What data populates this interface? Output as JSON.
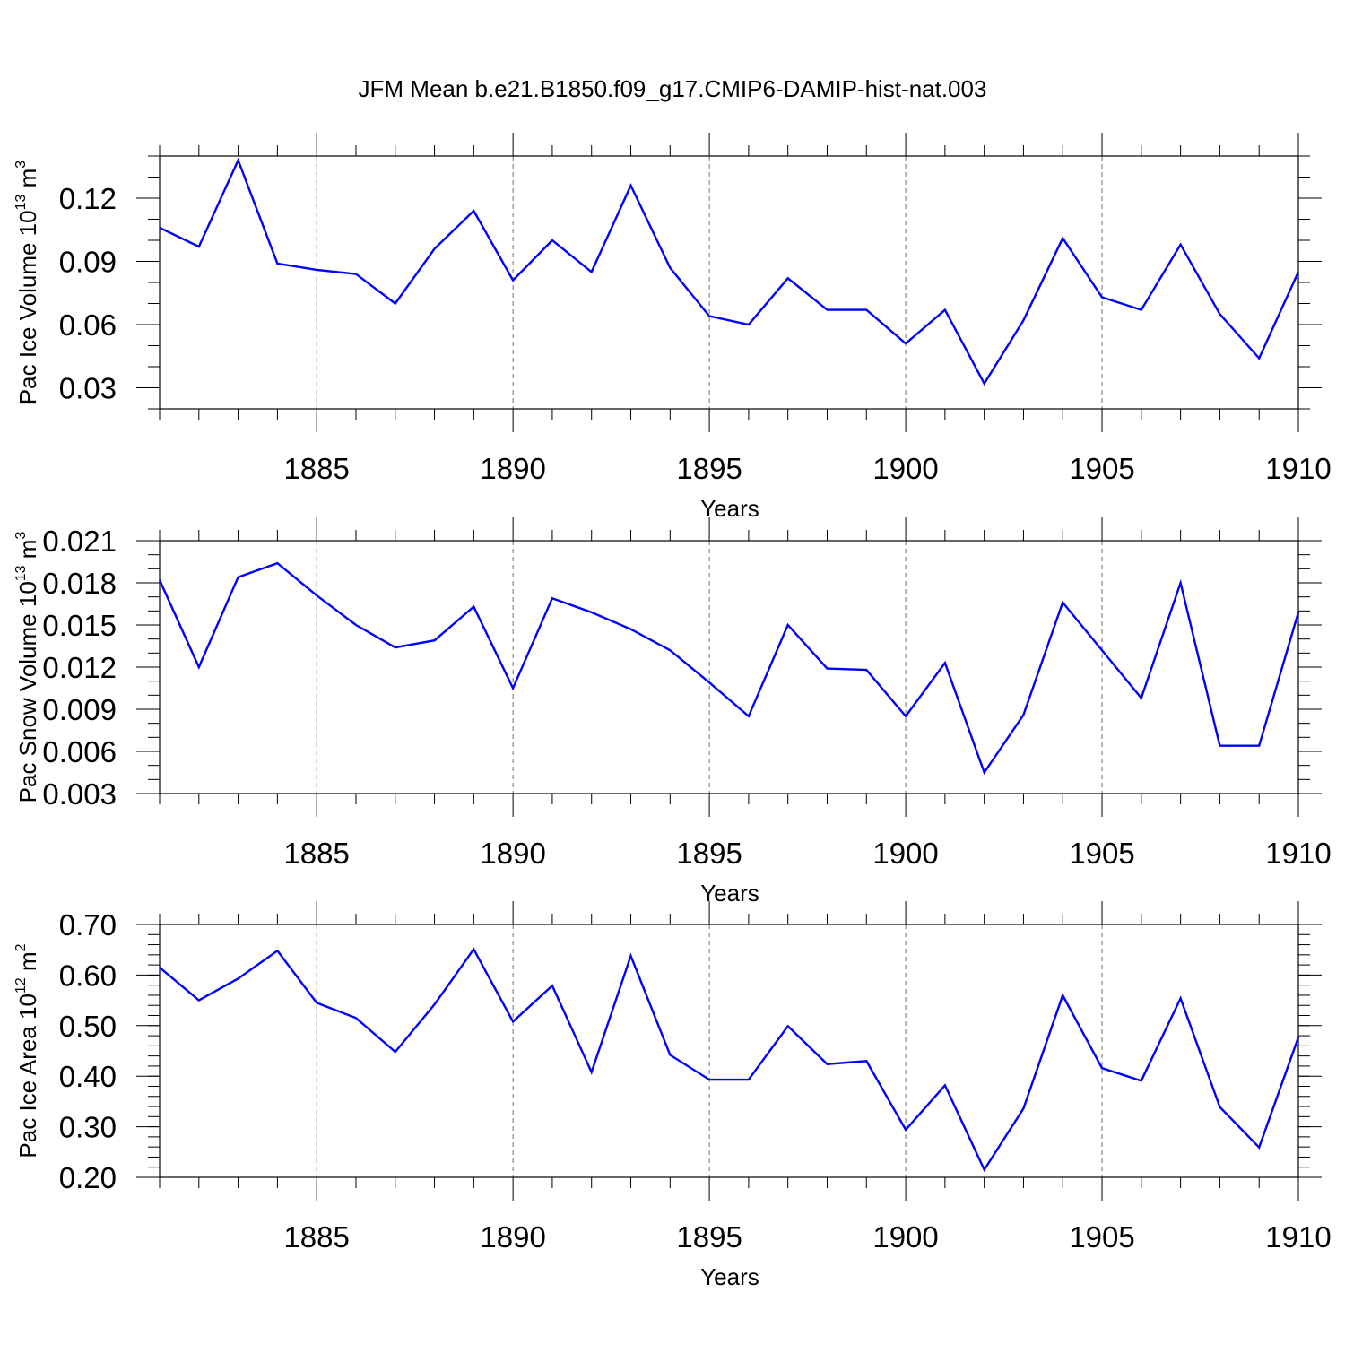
{
  "title": "JFM Mean b.e21.B1850.f09_g17.CMIP6-DAMIP-hist-nat.003",
  "colors": {
    "line": "#0000ff",
    "axis": "#000000",
    "grid": "#000000"
  },
  "chart_data": [
    {
      "type": "line",
      "xlabel": "Years",
      "ylabel": {
        "text": "Pac Ice Volume 10",
        "exp": "13",
        "unit": " m",
        "unit_exp": "3"
      },
      "xlim": [
        1881,
        1910
      ],
      "ylim": [
        0.02,
        0.14
      ],
      "yticks": [
        0.03,
        0.06,
        0.09,
        0.12
      ],
      "yticklabels": [
        "0.03",
        "0.06",
        "0.09",
        "0.12"
      ],
      "yminor": 0.01,
      "grid": "vertical dashed at major x ticks",
      "x": [
        1881,
        1882,
        1883,
        1884,
        1885,
        1886,
        1887,
        1888,
        1889,
        1890,
        1891,
        1892,
        1893,
        1894,
        1895,
        1896,
        1897,
        1898,
        1899,
        1900,
        1901,
        1902,
        1903,
        1904,
        1905,
        1906,
        1907,
        1908,
        1909,
        1910
      ],
      "values": [
        0.106,
        0.097,
        0.138,
        0.089,
        0.086,
        0.084,
        0.07,
        0.096,
        0.114,
        0.081,
        0.1,
        0.085,
        0.126,
        0.087,
        0.064,
        0.06,
        0.082,
        0.067,
        0.067,
        0.051,
        0.067,
        0.032,
        0.062,
        0.101,
        0.073,
        0.067,
        0.098,
        0.065,
        0.044,
        0.085
      ]
    },
    {
      "type": "line",
      "xlabel": "Years",
      "ylabel": {
        "text": "Pac Snow Volume 10",
        "exp": "13",
        "unit": " m",
        "unit_exp": "3"
      },
      "xlim": [
        1881,
        1910
      ],
      "ylim": [
        0.003,
        0.021
      ],
      "yticks": [
        0.003,
        0.006,
        0.009,
        0.012,
        0.015,
        0.018,
        0.021
      ],
      "yticklabels": [
        "0.003",
        "0.006",
        "0.009",
        "0.012",
        "0.015",
        "0.018",
        "0.021"
      ],
      "yminor": 0.001,
      "grid": "vertical dashed at major x ticks",
      "x": [
        1881,
        1882,
        1883,
        1884,
        1885,
        1886,
        1887,
        1888,
        1889,
        1890,
        1891,
        1892,
        1893,
        1894,
        1895,
        1896,
        1897,
        1898,
        1899,
        1900,
        1901,
        1902,
        1903,
        1904,
        1905,
        1906,
        1907,
        1908,
        1909,
        1910
      ],
      "values": [
        0.0182,
        0.012,
        0.0184,
        0.0194,
        0.0171,
        0.015,
        0.0134,
        0.0139,
        0.0163,
        0.0105,
        0.0169,
        0.0159,
        0.0147,
        0.0132,
        0.0109,
        0.0085,
        0.015,
        0.0119,
        0.0118,
        0.0085,
        0.0123,
        0.0045,
        0.0086,
        0.0166,
        0.0132,
        0.0098,
        0.018,
        0.0064,
        0.0064,
        0.0159
      ]
    },
    {
      "type": "line",
      "xlabel": "Years",
      "ylabel": {
        "text": "Pac Ice Area 10",
        "exp": "12",
        "unit": " m",
        "unit_exp": "2"
      },
      "xlim": [
        1881,
        1910
      ],
      "ylim": [
        0.2,
        0.7
      ],
      "yticks": [
        0.2,
        0.3,
        0.4,
        0.5,
        0.6,
        0.7
      ],
      "yticklabels": [
        "0.20",
        "0.30",
        "0.40",
        "0.50",
        "0.60",
        "0.70"
      ],
      "yminor": 0.02,
      "grid": "vertical dashed at major x ticks",
      "x": [
        1881,
        1882,
        1883,
        1884,
        1885,
        1886,
        1887,
        1888,
        1889,
        1890,
        1891,
        1892,
        1893,
        1894,
        1895,
        1896,
        1897,
        1898,
        1899,
        1900,
        1901,
        1902,
        1903,
        1904,
        1905,
        1906,
        1907,
        1908,
        1909,
        1910
      ],
      "values": [
        0.615,
        0.55,
        0.593,
        0.648,
        0.545,
        0.515,
        0.448,
        0.542,
        0.651,
        0.508,
        0.579,
        0.408,
        0.638,
        0.442,
        0.393,
        0.393,
        0.499,
        0.424,
        0.43,
        0.294,
        0.382,
        0.215,
        0.336,
        0.56,
        0.416,
        0.391,
        0.554,
        0.339,
        0.259,
        0.477
      ]
    }
  ],
  "xticks": [
    1885,
    1890,
    1895,
    1900,
    1905,
    1910
  ],
  "xticklabels": [
    "1885",
    "1890",
    "1895",
    "1900",
    "1905",
    "1910"
  ]
}
